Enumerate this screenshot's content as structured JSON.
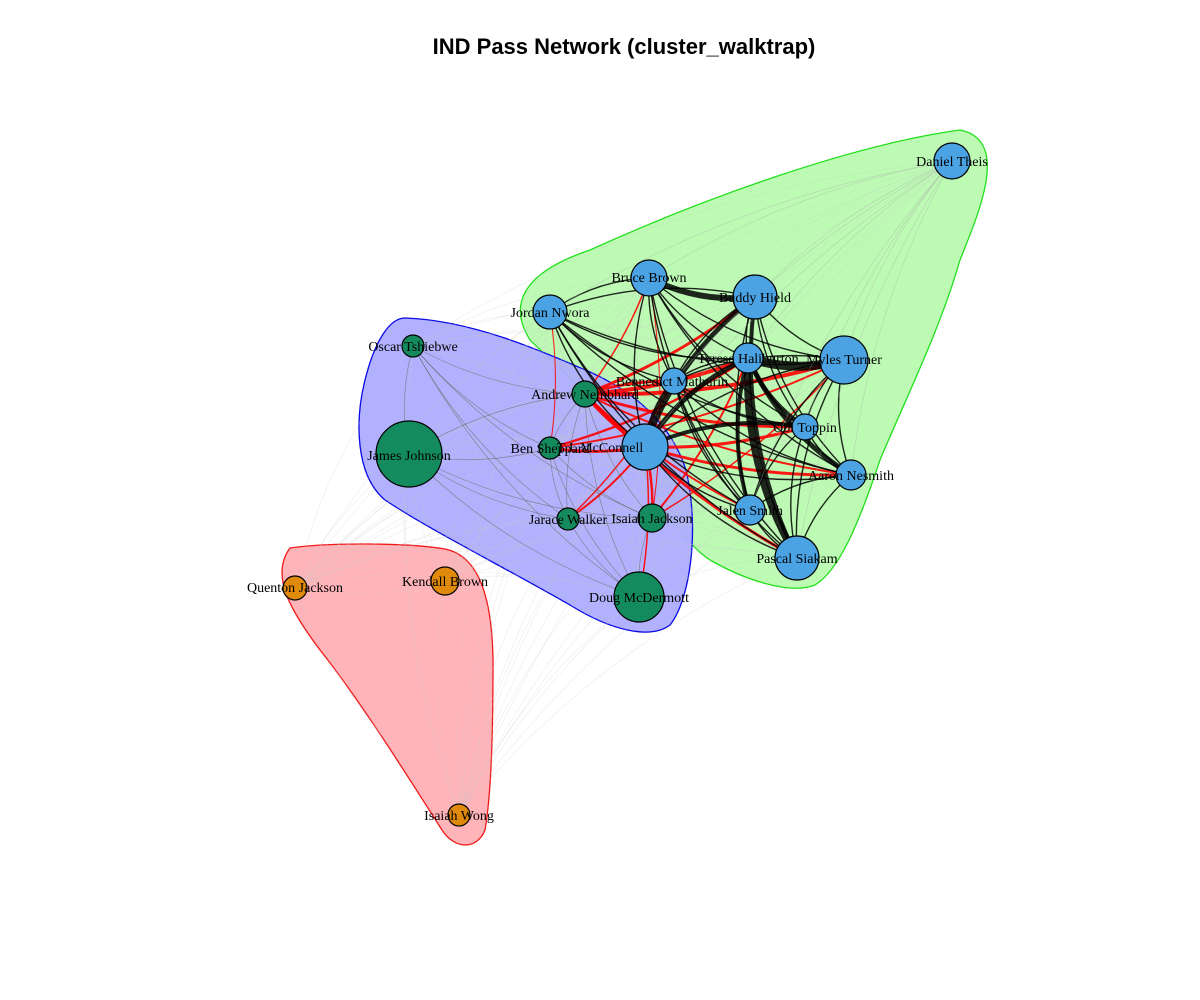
{
  "title": "IND Pass Network (cluster_walktrap)",
  "colors": {
    "blue_node": "#4BA3E3",
    "green_node": "#148A5F",
    "orange_node": "#E08A0C",
    "green_hull_fill": "#B9FBB0",
    "green_hull_stroke": "#22E01C",
    "blue_hull_fill": "#ADADFF",
    "blue_hull_stroke": "#0A0AE6",
    "red_hull_fill": "#FFB0B5",
    "red_hull_stroke": "#F01A1A",
    "intra_edge": "#000000",
    "inter_edge": "#FF0000"
  },
  "clusters": [
    {
      "id": "green",
      "color": "green"
    },
    {
      "id": "blue",
      "color": "blue"
    },
    {
      "id": "red",
      "color": "red"
    }
  ],
  "nodes": [
    {
      "id": "daniel-theis",
      "label": "Daniel Theis",
      "cluster": "green"
    },
    {
      "id": "bruce-brown",
      "label": "Bruce Brown",
      "cluster": "green"
    },
    {
      "id": "buddy-hield",
      "label": "Buddy Hield",
      "cluster": "green"
    },
    {
      "id": "jordan-nwora",
      "label": "Jordan Nwora",
      "cluster": "green"
    },
    {
      "id": "tyrese-haliburton",
      "label": "Tyrese Haliburton",
      "cluster": "green"
    },
    {
      "id": "myles-turner",
      "label": "Myles Turner",
      "cluster": "green"
    },
    {
      "id": "bennedict-mathurin",
      "label": "Bennedict Mathurin",
      "cluster": "green"
    },
    {
      "id": "obi-toppin",
      "label": "Obi Toppin",
      "cluster": "green"
    },
    {
      "id": "tj-mcconnell",
      "label": "T.J. McConnell",
      "cluster": "green"
    },
    {
      "id": "aaron-nesmith",
      "label": "Aaron Nesmith",
      "cluster": "green"
    },
    {
      "id": "jalen-smith",
      "label": "Jalen Smith",
      "cluster": "green"
    },
    {
      "id": "pascal-siakam",
      "label": "Pascal Siakam",
      "cluster": "green"
    },
    {
      "id": "oscar-tshiebwe",
      "label": "Oscar Tshiebwe",
      "cluster": "blue"
    },
    {
      "id": "andrew-nembhard",
      "label": "Andrew Nembhard",
      "cluster": "blue"
    },
    {
      "id": "james-johnson",
      "label": "James Johnson",
      "cluster": "blue"
    },
    {
      "id": "ben-sheppard",
      "label": "Ben Sheppard",
      "cluster": "blue"
    },
    {
      "id": "jarace-walker",
      "label": "Jarace Walker",
      "cluster": "blue"
    },
    {
      "id": "isaiah-jackson",
      "label": "Isaiah Jackson",
      "cluster": "blue"
    },
    {
      "id": "doug-mcdermott",
      "label": "Doug McDermott",
      "cluster": "blue"
    },
    {
      "id": "quenton-jackson",
      "label": "Quenton Jackson",
      "cluster": "red"
    },
    {
      "id": "kendall-brown",
      "label": "Kendall Brown",
      "cluster": "red"
    },
    {
      "id": "isaiah-wong",
      "label": "Isaiah Wong",
      "cluster": "red"
    }
  ]
}
